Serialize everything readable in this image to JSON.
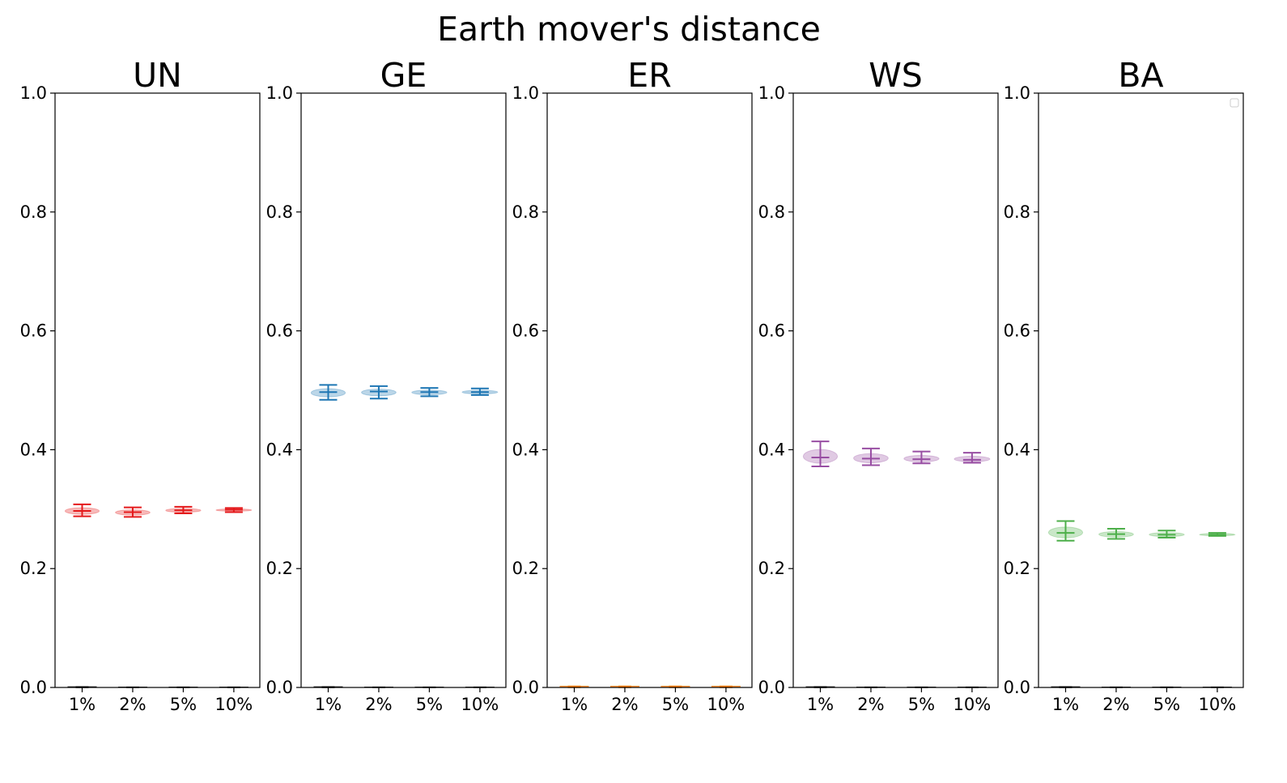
{
  "figure": {
    "title": "Earth mover's distance"
  },
  "chart_data": [
    {
      "type": "violin",
      "title": "UN",
      "color": "#e41a1c",
      "categories": [
        "1%",
        "2%",
        "5%",
        "10%"
      ],
      "ylim": [
        0,
        1
      ],
      "yticks": [
        "0.0",
        "0.2",
        "0.4",
        "0.6",
        "0.8",
        "1.0"
      ],
      "series": [
        {
          "values": [
            {
              "min": 0.288,
              "median": 0.297,
              "max": 0.308
            },
            {
              "min": 0.287,
              "median": 0.295,
              "max": 0.303
            },
            {
              "min": 0.293,
              "median": 0.298,
              "max": 0.304
            },
            {
              "min": 0.295,
              "median": 0.299,
              "max": 0.302
            }
          ]
        },
        {
          "color": "#000000",
          "values": [
            {
              "min": 0,
              "median": 0,
              "max": 0.001
            },
            {
              "min": 0,
              "median": 0,
              "max": 0.0005
            },
            {
              "min": 0,
              "median": 0,
              "max": 0.0005
            },
            {
              "min": 0,
              "median": 0,
              "max": 0.0005
            }
          ]
        }
      ]
    },
    {
      "type": "violin",
      "title": "GE",
      "color": "#1f77b4",
      "categories": [
        "1%",
        "2%",
        "5%",
        "10%"
      ],
      "ylim": [
        0,
        1
      ],
      "yticks": [
        "0.0",
        "0.2",
        "0.4",
        "0.6",
        "0.8",
        "1.0"
      ],
      "series": [
        {
          "values": [
            {
              "min": 0.484,
              "median": 0.497,
              "max": 0.509
            },
            {
              "min": 0.486,
              "median": 0.498,
              "max": 0.507
            },
            {
              "min": 0.49,
              "median": 0.497,
              "max": 0.504
            },
            {
              "min": 0.492,
              "median": 0.497,
              "max": 0.503
            }
          ]
        },
        {
          "color": "#000000",
          "values": [
            {
              "min": 0,
              "median": 0,
              "max": 0.001
            },
            {
              "min": 0,
              "median": 0,
              "max": 0.0005
            },
            {
              "min": 0,
              "median": 0,
              "max": 0.0005
            },
            {
              "min": 0,
              "median": 0,
              "max": 0.0005
            }
          ]
        }
      ]
    },
    {
      "type": "violin",
      "title": "ER",
      "color": "#ff7f0e",
      "categories": [
        "1%",
        "2%",
        "5%",
        "10%"
      ],
      "ylim": [
        0,
        1
      ],
      "yticks": [
        "0.0",
        "0.2",
        "0.4",
        "0.6",
        "0.8",
        "1.0"
      ],
      "series": [
        {
          "values": [
            {
              "min": 0,
              "median": 0.001,
              "max": 0.002
            },
            {
              "min": 0,
              "median": 0.001,
              "max": 0.002
            },
            {
              "min": 0,
              "median": 0.001,
              "max": 0.002
            },
            {
              "min": 0,
              "median": 0.001,
              "max": 0.002
            }
          ]
        }
      ]
    },
    {
      "type": "violin",
      "title": "WS",
      "color": "#984ea3",
      "categories": [
        "1%",
        "2%",
        "5%",
        "10%"
      ],
      "ylim": [
        0,
        1
      ],
      "yticks": [
        "0.0",
        "0.2",
        "0.4",
        "0.6",
        "0.8",
        "1.0"
      ],
      "series": [
        {
          "values": [
            {
              "min": 0.372,
              "median": 0.387,
              "max": 0.414
            },
            {
              "min": 0.374,
              "median": 0.385,
              "max": 0.402
            },
            {
              "min": 0.377,
              "median": 0.384,
              "max": 0.397
            },
            {
              "min": 0.378,
              "median": 0.383,
              "max": 0.395
            }
          ]
        },
        {
          "color": "#000000",
          "values": [
            {
              "min": 0,
              "median": 0,
              "max": 0.001
            },
            {
              "min": 0,
              "median": 0,
              "max": 0.0005
            },
            {
              "min": 0,
              "median": 0,
              "max": 0.0005
            },
            {
              "min": 0,
              "median": 0,
              "max": 0.0005
            }
          ]
        }
      ]
    },
    {
      "type": "violin",
      "title": "BA",
      "color": "#4daf4a",
      "categories": [
        "1%",
        "2%",
        "5%",
        "10%"
      ],
      "ylim": [
        0,
        1
      ],
      "yticks": [
        "0.0",
        "0.2",
        "0.4",
        "0.6",
        "0.8",
        "1.0"
      ],
      "legend": "top-right (empty)",
      "series": [
        {
          "values": [
            {
              "min": 0.247,
              "median": 0.26,
              "max": 0.28
            },
            {
              "min": 0.25,
              "median": 0.258,
              "max": 0.267
            },
            {
              "min": 0.252,
              "median": 0.257,
              "max": 0.264
            },
            {
              "min": 0.255,
              "median": 0.257,
              "max": 0.26
            }
          ]
        },
        {
          "color": "#000000",
          "values": [
            {
              "min": 0,
              "median": 0,
              "max": 0.001
            },
            {
              "min": 0,
              "median": 0,
              "max": 0.0005
            },
            {
              "min": 0,
              "median": 0,
              "max": 0.0005
            },
            {
              "min": 0,
              "median": 0,
              "max": 0.0005
            }
          ]
        }
      ]
    }
  ]
}
